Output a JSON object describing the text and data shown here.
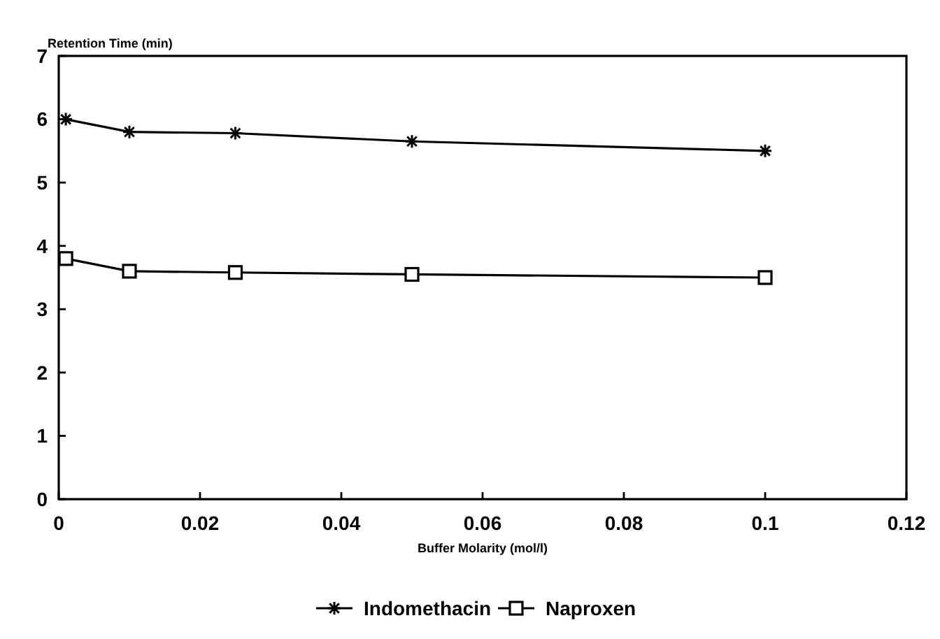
{
  "chart_data": {
    "type": "line",
    "ylabel": "Retention Time (min)",
    "xlabel": "Buffer Molarity (mol/l)",
    "xlim": [
      0,
      0.12
    ],
    "xticks": [
      0,
      0.02,
      0.04,
      0.06,
      0.08,
      0.1,
      0.12
    ],
    "ylim": [
      0,
      7
    ],
    "yticks": [
      0,
      1,
      2,
      3,
      4,
      5,
      6,
      7
    ],
    "grid": false,
    "legend": "bottom",
    "series": [
      {
        "name": "Indomethacin",
        "color": "#000000",
        "marker": "cross",
        "x": [
          0.001,
          0.01,
          0.025,
          0.05,
          0.1
        ],
        "values": [
          6.0,
          5.8,
          5.78,
          5.65,
          5.5
        ]
      },
      {
        "name": "Naproxen",
        "color": "#000000",
        "marker": "square",
        "x": [
          0.001,
          0.01,
          0.025,
          0.05,
          0.1
        ],
        "values": [
          3.8,
          3.6,
          3.58,
          3.55,
          3.5
        ]
      }
    ]
  }
}
